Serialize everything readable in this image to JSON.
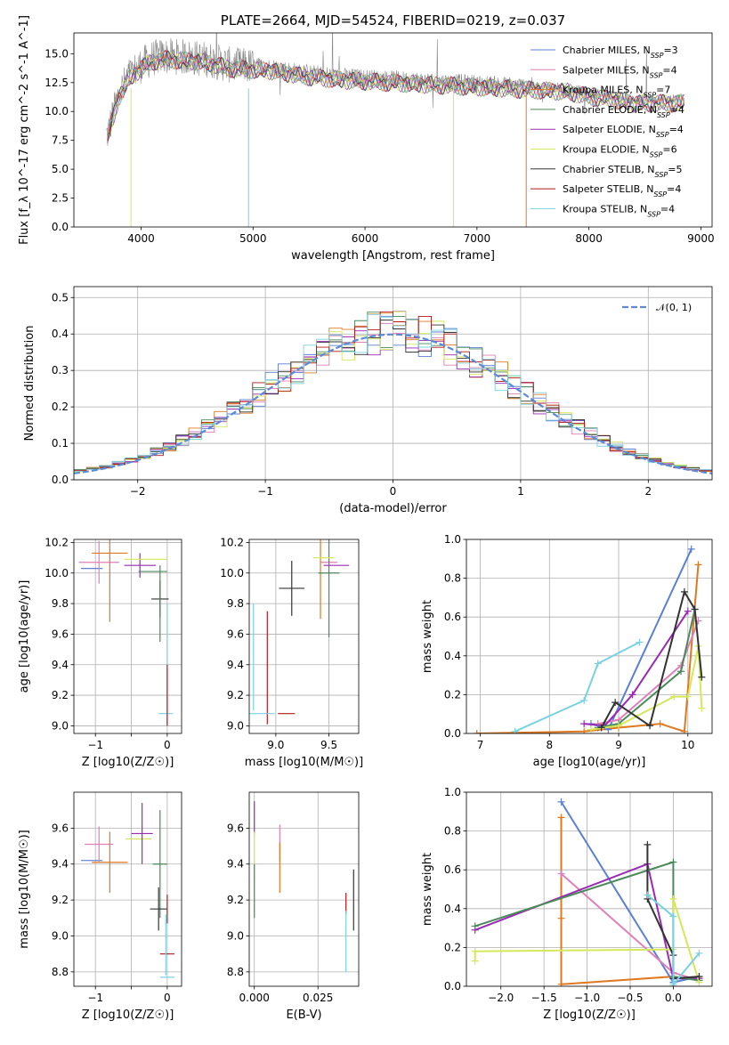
{
  "colors": {
    "cmiles": "#5b7fd6",
    "smiles": "#e07fb8",
    "kmiles": "#e07820",
    "celodie": "#4a8a5a",
    "selodie": "#9a2ab4",
    "kelodie": "#d4e85a",
    "cstelib": "#333333",
    "sstelib": "#b21818",
    "kstelib": "#79d2e0",
    "normal": "#5b8ad8"
  },
  "chart_data": [
    {
      "id": "spectrum",
      "type": "line",
      "title": "PLATE=2664, MJD=54524, FIBERID=0219, z=0.037",
      "xlabel": "wavelength [Angstrom, rest frame]",
      "ylabel": "Flux [f_λ 10^-17 erg cm^-2 s^-1 A^-1]",
      "xlim": [
        3400,
        9100
      ],
      "ylim": [
        0,
        16.8
      ],
      "xticks": [
        4000,
        5000,
        6000,
        7000,
        8000,
        9000
      ],
      "yticks": [
        0.0,
        2.5,
        5.0,
        7.5,
        10.0,
        12.5,
        15.0
      ],
      "grid": false,
      "legend": "top-right",
      "observed_envelope": {
        "x": [
          3700,
          3800,
          3900,
          4000,
          4100,
          4200,
          4400,
          4600,
          4800,
          5000,
          5200,
          5400,
          5600,
          5800,
          6000,
          6200,
          6400,
          6600,
          6800,
          7000,
          7200,
          7400,
          7600,
          7800,
          8000,
          8200,
          8400,
          8600,
          8800
        ],
        "y": [
          8.0,
          11.5,
          13.2,
          14.0,
          14.6,
          14.8,
          14.7,
          14.5,
          14.0,
          13.9,
          13.8,
          13.4,
          13.2,
          13.0,
          12.9,
          12.8,
          12.7,
          12.6,
          12.5,
          12.4,
          12.3,
          12.2,
          12.1,
          12.0,
          11.6,
          11.3,
          11.0,
          11.0,
          11.0
        ]
      },
      "series": [
        {
          "name": "Chabrier MILES, N_SSP=3",
          "color_key": "cmiles"
        },
        {
          "name": "Salpeter MILES, N_SSP=4",
          "color_key": "smiles"
        },
        {
          "name": "Kroupa MILES, N_SSP=7",
          "color_key": "kmiles"
        },
        {
          "name": "Chabrier ELODIE, N_SSP=4",
          "color_key": "celodie"
        },
        {
          "name": "Salpeter ELODIE, N_SSP=4",
          "color_key": "selodie"
        },
        {
          "name": "Kroupa ELODIE, N_SSP=6",
          "color_key": "kelodie"
        },
        {
          "name": "Chabrier STELIB, N_SSP=5",
          "color_key": "cstelib"
        },
        {
          "name": "Salpeter STELIB, N_SSP=4",
          "color_key": "sstelib"
        },
        {
          "name": "Kroupa STELIB, N_SSP=4",
          "color_key": "kstelib"
        }
      ]
    },
    {
      "id": "residuals",
      "type": "histogram",
      "xlabel": "(data-model)/error",
      "ylabel": "Normed distribution",
      "xlim": [
        -2.5,
        2.5
      ],
      "ylim": [
        0,
        0.53
      ],
      "xticks": [
        -2,
        -1,
        0,
        1,
        2
      ],
      "yticks": [
        0.0,
        0.1,
        0.2,
        0.3,
        0.4,
        0.5
      ],
      "grid": true,
      "legend": "top-right",
      "normal_label": "𝒩(0, 1)",
      "bin_width": 0.1
    },
    {
      "id": "age_vs_Z",
      "type": "scatter",
      "xlabel": "Z [log10(Z/Z☉)]",
      "ylabel": "age [log10(age/yr)]",
      "xlim": [
        -1.3,
        0.2
      ],
      "ylim": [
        8.95,
        10.22
      ],
      "xticks": [
        -1,
        -0.5,
        0
      ],
      "xticklabels": [
        "−1",
        "",
        "0"
      ],
      "yticks": [
        9.0,
        9.2,
        9.4,
        9.6,
        9.8,
        10.0,
        10.2
      ],
      "points": [
        {
          "c": "cmiles",
          "x": -1.05,
          "xe": 0.15,
          "y": 10.03,
          "ye": 0.0
        },
        {
          "c": "smiles",
          "x": -0.95,
          "xe": 0.28,
          "y": 10.07,
          "ye": 0.14
        },
        {
          "c": "kmiles",
          "x": -0.8,
          "xe": 0.25,
          "y": 10.13,
          "ye": 0.45
        },
        {
          "c": "celodie",
          "x": -0.2,
          "xe": 0.2,
          "y": 10.01,
          "ye": 0.0
        },
        {
          "c": "selodie",
          "x": -0.38,
          "xe": 0.22,
          "y": 10.05,
          "ye": 0.08
        },
        {
          "c": "kelodie",
          "x": -0.3,
          "xe": 0.3,
          "y": 10.09,
          "ye": 0.0
        },
        {
          "c": "cstelib",
          "x": -0.1,
          "xe": 0.12,
          "y": 9.83,
          "ye": 0.12
        },
        {
          "c": "celodie",
          "x": -0.1,
          "xe": 0.0,
          "y": 9.8,
          "ye": 0.25
        },
        {
          "c": "kstelib",
          "x": -0.02,
          "xe": 0.1,
          "y": 9.08,
          "ye": 0.0
        },
        {
          "c": "kstelib",
          "x": 0.0,
          "xe": 0.0,
          "y": 9.4,
          "ye": 0.4
        },
        {
          "c": "sstelib",
          "x": 0.0,
          "xe": 0.0,
          "y": 9.2,
          "ye": 0.2
        }
      ]
    },
    {
      "id": "age_vs_mass",
      "type": "scatter",
      "xlabel": "mass [log10(M/M☉)]",
      "ylabel": "",
      "xlim": [
        8.75,
        9.78
      ],
      "ylim": [
        8.95,
        10.22
      ],
      "xticks": [
        9.0,
        9.5
      ],
      "yticks": [
        9.0,
        9.2,
        9.4,
        9.6,
        9.8,
        10.0,
        10.2
      ],
      "points": [
        {
          "c": "cmiles",
          "x": 9.42,
          "xe": 0.0,
          "y": 10.03,
          "ye": 0.0
        },
        {
          "c": "smiles",
          "x": 9.5,
          "xe": 0.08,
          "y": 10.07,
          "ye": 0.0
        },
        {
          "c": "kmiles",
          "x": 9.42,
          "xe": 0.0,
          "y": 10.12,
          "ye": 0.42
        },
        {
          "c": "celodie",
          "x": 9.5,
          "xe": 0.1,
          "y": 10.0,
          "ye": 0.42
        },
        {
          "c": "selodie",
          "x": 9.57,
          "xe": 0.12,
          "y": 10.05,
          "ye": 0.0
        },
        {
          "c": "kelodie",
          "x": 9.45,
          "xe": 0.1,
          "y": 10.1,
          "ye": 0.0
        },
        {
          "c": "cstelib",
          "x": 9.15,
          "xe": 0.12,
          "y": 9.9,
          "ye": 0.18
        },
        {
          "c": "sstelib",
          "x": 8.92,
          "xe": 0.0,
          "y": 9.38,
          "ye": 0.37
        },
        {
          "c": "sstelib",
          "x": 9.1,
          "xe": 0.08,
          "y": 9.08,
          "ye": 0.0
        },
        {
          "c": "kstelib",
          "x": 8.87,
          "xe": 0.12,
          "y": 9.08,
          "ye": 0.0
        },
        {
          "c": "kstelib",
          "x": 8.79,
          "xe": 0.0,
          "y": 9.45,
          "ye": 0.35
        }
      ]
    },
    {
      "id": "weight_vs_age",
      "type": "line",
      "xlabel": "age [log10(age/yr)]",
      "ylabel": "mass weight",
      "xlim": [
        6.8,
        10.35
      ],
      "ylim": [
        0,
        1.0
      ],
      "xticks": [
        7,
        8,
        9,
        10
      ],
      "yticks": [
        0.0,
        0.2,
        0.4,
        0.6,
        0.8,
        1.0
      ],
      "grid": true,
      "series": [
        {
          "c": "kmiles",
          "x": [
            6.95,
            8.5,
            9.0,
            9.6,
            9.95,
            10.15
          ],
          "y": [
            0.0,
            0.01,
            0.03,
            0.05,
            0.01,
            0.87
          ]
        },
        {
          "c": "cmiles",
          "x": [
            8.6,
            8.85,
            10.05
          ],
          "y": [
            0.05,
            0.02,
            0.95
          ]
        },
        {
          "c": "smiles",
          "x": [
            8.7,
            9.0,
            9.9,
            10.15
          ],
          "y": [
            0.05,
            0.07,
            0.35,
            0.58
          ]
        },
        {
          "c": "selodie",
          "x": [
            8.5,
            8.8,
            9.2,
            10.0
          ],
          "y": [
            0.05,
            0.04,
            0.2,
            0.63
          ]
        },
        {
          "c": "celodie",
          "x": [
            8.7,
            9.0,
            9.9,
            10.1
          ],
          "y": [
            0.03,
            0.05,
            0.32,
            0.64
          ]
        },
        {
          "c": "kelodie",
          "x": [
            8.6,
            9.0,
            9.8,
            10.0,
            10.15,
            10.2
          ],
          "y": [
            0.02,
            0.04,
            0.19,
            0.19,
            0.45,
            0.13
          ]
        },
        {
          "c": "cstelib",
          "x": [
            8.75,
            8.95,
            9.45,
            9.95,
            10.1,
            10.2
          ],
          "y": [
            0.03,
            0.16,
            0.04,
            0.73,
            0.64,
            0.29
          ]
        },
        {
          "c": "kstelib",
          "x": [
            7.5,
            8.5,
            8.7,
            9.3
          ],
          "y": [
            0.01,
            0.17,
            0.36,
            0.47
          ]
        }
      ]
    },
    {
      "id": "mass_vs_Z",
      "type": "scatter",
      "xlabel": "Z [log10(Z/Z☉)]",
      "ylabel": "mass [log10(M/M☉)]",
      "xlim": [
        -1.3,
        0.2
      ],
      "ylim": [
        8.72,
        9.8
      ],
      "xticks": [
        -1,
        -0.5,
        0
      ],
      "xticklabels": [
        "−1",
        "",
        "0"
      ],
      "yticks": [
        8.8,
        9.0,
        9.2,
        9.4,
        9.6
      ],
      "points": [
        {
          "c": "cmiles",
          "x": -1.05,
          "xe": 0.15,
          "y": 9.42,
          "ye": 0.0
        },
        {
          "c": "smiles",
          "x": -0.95,
          "xe": 0.2,
          "y": 9.51,
          "ye": 0.1
        },
        {
          "c": "kmiles",
          "x": -0.8,
          "xe": 0.25,
          "y": 9.41,
          "ye": 0.17
        },
        {
          "c": "kelodie",
          "x": -0.4,
          "xe": 0.18,
          "y": 9.54,
          "ye": 0.0
        },
        {
          "c": "selodie",
          "x": -0.35,
          "xe": 0.15,
          "y": 9.57,
          "ye": 0.17
        },
        {
          "c": "celodie",
          "x": -0.1,
          "xe": 0.1,
          "y": 9.4,
          "ye": 0.3
        },
        {
          "c": "cstelib",
          "x": -0.12,
          "xe": 0.12,
          "y": 9.15,
          "ye": 0.12
        },
        {
          "c": "celodie",
          "x": -0.05,
          "xe": 0.0,
          "y": 9.5,
          "ye": 0.0
        },
        {
          "c": "sstelib",
          "x": 0.0,
          "xe": 0.1,
          "y": 8.9,
          "ye": 0.0
        },
        {
          "c": "sstelib",
          "x": 0.0,
          "xe": 0.0,
          "y": 9.15,
          "ye": 0.08
        },
        {
          "c": "kstelib",
          "x": 0.0,
          "xe": 0.1,
          "y": 8.77,
          "ye": 0.0
        },
        {
          "c": "kstelib",
          "x": -0.02,
          "xe": 0.0,
          "y": 8.95,
          "ye": 0.17
        }
      ]
    },
    {
      "id": "mass_vs_EBV",
      "type": "scatter",
      "xlabel": "E(B-V)",
      "ylabel": "",
      "xlim": [
        -0.002,
        0.041
      ],
      "ylim": [
        8.72,
        9.8
      ],
      "xticks": [
        0.0,
        0.025
      ],
      "xticklabels": [
        "0.000",
        "0.025"
      ],
      "yticks": [
        8.8,
        9.0,
        9.2,
        9.4,
        9.6
      ],
      "points": [
        {
          "c": "selodie",
          "x": 0.0,
          "xe": 0.0,
          "y": 9.66,
          "ye": 0.09
        },
        {
          "c": "kelodie",
          "x": 0.0,
          "xe": 0.0,
          "y": 9.45,
          "ye": 0.13
        },
        {
          "c": "celodie",
          "x": 0.0,
          "xe": 0.0,
          "y": 9.25,
          "ye": 0.15
        },
        {
          "c": "smiles",
          "x": 0.01,
          "xe": 0.0,
          "y": 9.52,
          "ye": 0.1
        },
        {
          "c": "kmiles",
          "x": 0.01,
          "xe": 0.0,
          "y": 9.38,
          "ye": 0.14
        },
        {
          "c": "sstelib",
          "x": 0.036,
          "xe": 0.0,
          "y": 9.18,
          "ye": 0.06
        },
        {
          "c": "kstelib",
          "x": 0.036,
          "xe": 0.0,
          "y": 8.97,
          "ye": 0.17
        },
        {
          "c": "cstelib",
          "x": 0.039,
          "xe": 0.0,
          "y": 9.2,
          "ye": 0.17
        }
      ]
    },
    {
      "id": "weight_vs_Z",
      "type": "line",
      "xlabel": "Z [log10(Z/Z☉)]",
      "ylabel": "mass weight",
      "xlim": [
        -2.4,
        0.45
      ],
      "ylim": [
        0,
        1.0
      ],
      "xticks": [
        -2.0,
        -1.5,
        -1.0,
        -0.5,
        0.0
      ],
      "yticks": [
        0.0,
        0.2,
        0.4,
        0.6,
        0.8,
        1.0
      ],
      "xticklabels": [
        "−2.0",
        "−1.5",
        "−1.0",
        "−0.5",
        "0.0"
      ],
      "grid": true,
      "series": [
        {
          "c": "kmiles",
          "x": [
            -1.3,
            -1.3,
            -1.3,
            0.0,
            0.0
          ],
          "y": [
            0.87,
            0.35,
            0.01,
            0.05,
            0.0
          ]
        },
        {
          "c": "cmiles",
          "x": [
            -1.3,
            0.0,
            0.3
          ],
          "y": [
            0.95,
            0.02,
            0.05
          ]
        },
        {
          "c": "smiles",
          "x": [
            -1.3,
            0.0,
            0.3
          ],
          "y": [
            0.58,
            0.07,
            0.03
          ]
        },
        {
          "c": "selodie",
          "x": [
            -2.3,
            -0.3,
            0.0,
            0.3
          ],
          "y": [
            0.29,
            0.63,
            0.04,
            0.04
          ]
        },
        {
          "c": "celodie",
          "x": [
            -2.3,
            0.0,
            0.0,
            0.3
          ],
          "y": [
            0.31,
            0.64,
            0.05,
            0.03
          ]
        },
        {
          "c": "kelodie",
          "x": [
            -2.3,
            -2.3,
            0.0,
            0.0,
            0.3
          ],
          "y": [
            0.13,
            0.18,
            0.19,
            0.45,
            0.02
          ]
        },
        {
          "c": "cstelib",
          "x": [
            -0.3,
            -0.3,
            0.0,
            0.0,
            0.3
          ],
          "y": [
            0.73,
            0.45,
            0.16,
            0.04,
            0.05
          ]
        },
        {
          "c": "kstelib",
          "x": [
            -0.3,
            0.0,
            0.0,
            0.3
          ],
          "y": [
            0.47,
            0.36,
            0.01,
            0.17
          ]
        }
      ]
    }
  ]
}
